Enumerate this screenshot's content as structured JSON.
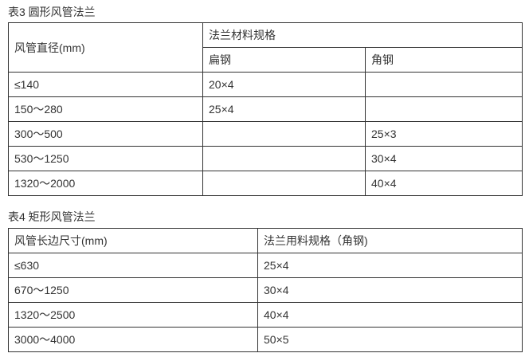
{
  "table3": {
    "caption": "表3  圆形风管法兰",
    "header": {
      "col1": "风管直径(mm)",
      "group": "法兰材料规格",
      "sub1": "扁钢",
      "sub2": "角钢"
    },
    "rows": [
      [
        "≤140",
        "20×4",
        ""
      ],
      [
        "150～280",
        "25×4",
        ""
      ],
      [
        "300～500",
        "",
        "25×3"
      ],
      [
        "530～1250",
        "",
        "30×4"
      ],
      [
        "1320～2000",
        "",
        "40×4"
      ]
    ]
  },
  "table4": {
    "caption": "表4 矩形风管法兰",
    "header": [
      "风管长边尺寸(mm)",
      "法兰用料规格（角钢)"
    ],
    "rows": [
      [
        "≤630",
        "25×4"
      ],
      [
        "670～1250",
        "30×4"
      ],
      [
        "1320～2500",
        "40×4"
      ],
      [
        "3000～4000",
        "50×5"
      ]
    ]
  }
}
